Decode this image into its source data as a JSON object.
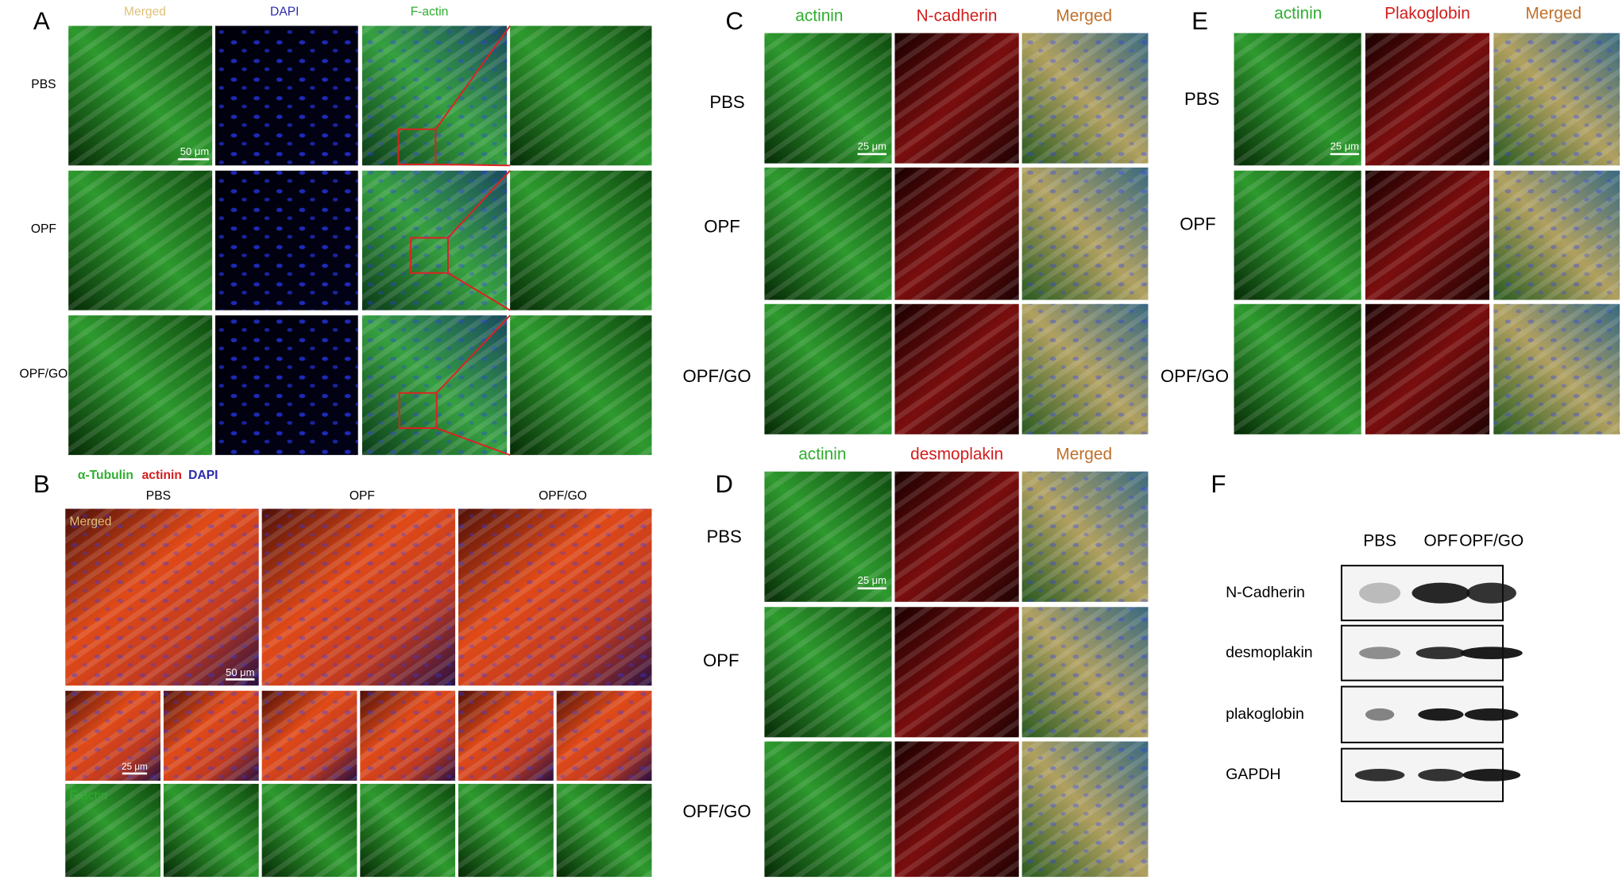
{
  "panels": {
    "A": {
      "label": "A",
      "columns": [
        "Merged",
        "DAPI",
        "F-actin"
      ],
      "rows": [
        "PBS",
        "OPF",
        "OPF/GO"
      ],
      "scale_bar": "50 μm"
    },
    "B": {
      "label": "B",
      "stain_legend": [
        "α-Tubulin",
        "actinin",
        "DAPI"
      ],
      "columns": [
        "PBS",
        "OPF",
        "OPF/GO"
      ],
      "inset_labels": [
        "Merged",
        "F-actin"
      ],
      "scale_bars": [
        "50 μm",
        "25 μm"
      ]
    },
    "C": {
      "label": "C",
      "columns": [
        "actinin",
        "N-cadherin",
        "Merged"
      ],
      "rows": [
        "PBS",
        "OPF",
        "OPF/GO"
      ],
      "scale_bar": "25 μm"
    },
    "D": {
      "label": "D",
      "columns": [
        "actinin",
        "desmoplakin",
        "Merged"
      ],
      "rows": [
        "PBS",
        "OPF",
        "OPF/GO"
      ],
      "scale_bar": "25 μm"
    },
    "E": {
      "label": "E",
      "columns": [
        "actinin",
        "Plakoglobin",
        "Merged"
      ],
      "rows": [
        "PBS",
        "OPF",
        "OPF/GO"
      ],
      "scale_bar": "25 μm"
    },
    "F": {
      "label": "F",
      "columns": [
        "PBS",
        "OPF",
        "OPF/GO"
      ],
      "rows": [
        "N-Cadherin",
        "desmoplakin",
        "plakoglobin",
        "GAPDH"
      ]
    }
  }
}
